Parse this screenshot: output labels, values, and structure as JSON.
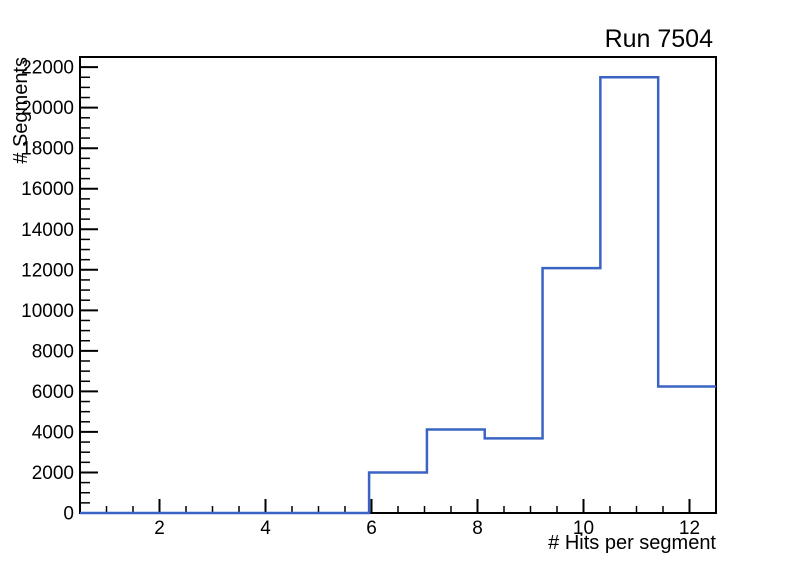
{
  "page": {
    "background_color": "#ffffff"
  },
  "chart_data": {
    "type": "line",
    "subtype": "step-histogram",
    "title": "Run 7504",
    "xlabel": "# Hits per segment",
    "ylabel": "# Segments",
    "xlim": [
      0.5,
      12.5
    ],
    "ylim": [
      0,
      22500
    ],
    "grid": false,
    "legend": false,
    "line_color": "#3a64c4",
    "axis_color": "#000000",
    "bin_edges": [
      0.5,
      1.5909,
      2.6818,
      3.7727,
      4.8636,
      5.9545,
      7.0455,
      8.1364,
      9.2273,
      10.3182,
      11.4091,
      12.5
    ],
    "counts": [
      0,
      0,
      0,
      0,
      0,
      2000,
      4120,
      3680,
      12080,
      21500,
      6240
    ],
    "x_major_ticks": [
      2,
      4,
      6,
      8,
      10,
      12
    ],
    "x_tick_labels": [
      "2",
      "4",
      "6",
      "8",
      "10",
      "12"
    ],
    "x_minor_step": 0.5,
    "y_major_ticks": [
      0,
      2000,
      4000,
      6000,
      8000,
      10000,
      12000,
      14000,
      16000,
      18000,
      20000,
      22000
    ],
    "y_tick_labels": [
      "0",
      "2000",
      "4000",
      "6000",
      "8000",
      "10000",
      "12000",
      "14000",
      "16000",
      "18000",
      "20000",
      "22000"
    ],
    "y_minor_step": 500,
    "y_major_step": 2000
  }
}
